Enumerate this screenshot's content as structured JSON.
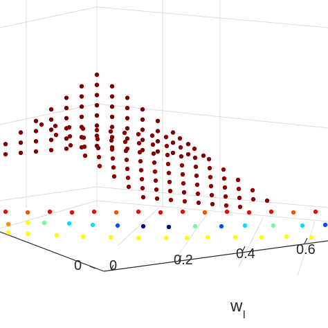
{
  "chart_data": {
    "type": "scatter",
    "view": "3d",
    "title": "",
    "xlabel": "w",
    "xlabel_subscript": "l",
    "xticks": [
      "0",
      "0.2",
      "0.4",
      "0.6"
    ],
    "yticks": [
      "0"
    ],
    "grid": true,
    "colormap": [
      "#00008f",
      "#0050ff",
      "#00dfff",
      "#70ff90",
      "#ffff00",
      "#ff9000",
      "#ff2000",
      "#b00000",
      "#800000"
    ],
    "series": [
      {
        "name": "",
        "note": "upper sheet: dark-red points forming a pyramid surface, peak near back",
        "rows": [
          [
            0.9
          ],
          [
            0.86,
            0.86,
            0.86
          ],
          [
            0.82,
            0.82,
            0.82,
            0.82,
            0.82
          ],
          [
            0.78,
            0.78,
            0.78,
            0.78,
            0.78,
            0.78,
            0.78
          ],
          [
            0.74,
            0.74,
            0.74,
            0.74,
            0.74,
            0.74,
            0.74,
            0.74,
            0.74
          ],
          [
            0.7,
            0.7,
            0.7,
            0.7,
            0.7,
            0.7,
            0.7,
            0.7,
            0.7,
            0.7,
            0.7
          ],
          [
            0.66,
            0.66,
            0.66,
            0.66,
            0.66,
            0.66,
            0.66,
            0.66,
            0.66,
            0.66,
            0.66,
            0.66,
            0.66
          ],
          [
            0.62,
            0.62,
            0.62,
            0.62,
            0.62,
            0.62,
            0.62,
            0.62,
            0.62,
            0.62,
            0.62,
            0.62,
            0.62,
            0.62,
            0.62
          ]
        ]
      }
    ]
  }
}
